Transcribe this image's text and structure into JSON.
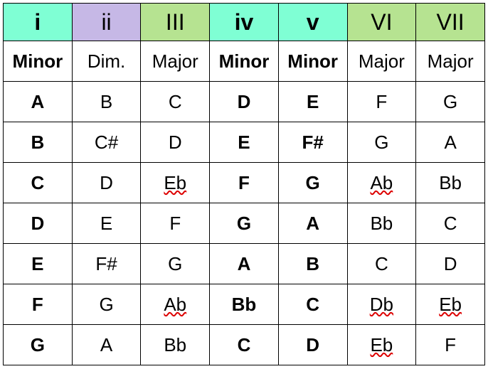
{
  "colors": {
    "mint": "#7fffd4",
    "lavender": "#c6b8e6",
    "lime": "#b6e391",
    "white": "#ffffff"
  },
  "columns": [
    {
      "numeral": "i",
      "bold": true,
      "bg": "#7fffd4"
    },
    {
      "numeral": "ii",
      "bold": false,
      "bg": "#c6b8e6"
    },
    {
      "numeral": "III",
      "bold": false,
      "bg": "#b6e391"
    },
    {
      "numeral": "iv",
      "bold": true,
      "bg": "#7fffd4"
    },
    {
      "numeral": "v",
      "bold": true,
      "bg": "#7fffd4"
    },
    {
      "numeral": "VI",
      "bold": false,
      "bg": "#b6e391"
    },
    {
      "numeral": "VII",
      "bold": false,
      "bg": "#b6e391"
    }
  ],
  "quality": [
    {
      "label": "Minor",
      "bold": true
    },
    {
      "label": "Dim.",
      "bold": false
    },
    {
      "label": "Major",
      "bold": false
    },
    {
      "label": "Minor",
      "bold": true
    },
    {
      "label": "Minor",
      "bold": true
    },
    {
      "label": "Major",
      "bold": false
    },
    {
      "label": "Major",
      "bold": false
    }
  ],
  "rows": [
    [
      {
        "text": "A",
        "bold": true,
        "squiggle": false
      },
      {
        "text": "B",
        "bold": false,
        "squiggle": false
      },
      {
        "text": "C",
        "bold": false,
        "squiggle": false
      },
      {
        "text": "D",
        "bold": true,
        "squiggle": false
      },
      {
        "text": "E",
        "bold": true,
        "squiggle": false
      },
      {
        "text": "F",
        "bold": false,
        "squiggle": false
      },
      {
        "text": "G",
        "bold": false,
        "squiggle": false
      }
    ],
    [
      {
        "text": "B",
        "bold": true,
        "squiggle": false
      },
      {
        "text": "C#",
        "bold": false,
        "squiggle": false
      },
      {
        "text": "D",
        "bold": false,
        "squiggle": false
      },
      {
        "text": "E",
        "bold": true,
        "squiggle": false
      },
      {
        "text": "F#",
        "bold": true,
        "squiggle": false
      },
      {
        "text": "G",
        "bold": false,
        "squiggle": false
      },
      {
        "text": "A",
        "bold": false,
        "squiggle": false
      }
    ],
    [
      {
        "text": "C",
        "bold": true,
        "squiggle": false
      },
      {
        "text": "D",
        "bold": false,
        "squiggle": false
      },
      {
        "text": "Eb",
        "bold": false,
        "squiggle": true
      },
      {
        "text": "F",
        "bold": true,
        "squiggle": false
      },
      {
        "text": "G",
        "bold": true,
        "squiggle": false
      },
      {
        "text": "Ab",
        "bold": false,
        "squiggle": true
      },
      {
        "text": "Bb",
        "bold": false,
        "squiggle": false
      }
    ],
    [
      {
        "text": "D",
        "bold": true,
        "squiggle": false
      },
      {
        "text": "E",
        "bold": false,
        "squiggle": false
      },
      {
        "text": "F",
        "bold": false,
        "squiggle": false
      },
      {
        "text": "G",
        "bold": true,
        "squiggle": false
      },
      {
        "text": "A",
        "bold": true,
        "squiggle": false
      },
      {
        "text": "Bb",
        "bold": false,
        "squiggle": false
      },
      {
        "text": "C",
        "bold": false,
        "squiggle": false
      }
    ],
    [
      {
        "text": "E",
        "bold": true,
        "squiggle": false
      },
      {
        "text": "F#",
        "bold": false,
        "squiggle": false
      },
      {
        "text": "G",
        "bold": false,
        "squiggle": false
      },
      {
        "text": "A",
        "bold": true,
        "squiggle": false
      },
      {
        "text": "B",
        "bold": true,
        "squiggle": false
      },
      {
        "text": "C",
        "bold": false,
        "squiggle": false
      },
      {
        "text": "D",
        "bold": false,
        "squiggle": false
      }
    ],
    [
      {
        "text": "F",
        "bold": true,
        "squiggle": false
      },
      {
        "text": "G",
        "bold": false,
        "squiggle": false
      },
      {
        "text": "Ab",
        "bold": false,
        "squiggle": true
      },
      {
        "text": "Bb",
        "bold": true,
        "squiggle": false
      },
      {
        "text": "C",
        "bold": true,
        "squiggle": false
      },
      {
        "text": "Db",
        "bold": false,
        "squiggle": true
      },
      {
        "text": "Eb",
        "bold": false,
        "squiggle": true
      }
    ],
    [
      {
        "text": "G",
        "bold": true,
        "squiggle": false
      },
      {
        "text": "A",
        "bold": false,
        "squiggle": false
      },
      {
        "text": "Bb",
        "bold": false,
        "squiggle": false
      },
      {
        "text": "C",
        "bold": true,
        "squiggle": false
      },
      {
        "text": "D",
        "bold": true,
        "squiggle": false
      },
      {
        "text": "Eb",
        "bold": false,
        "squiggle": true
      },
      {
        "text": "F",
        "bold": false,
        "squiggle": false
      }
    ]
  ]
}
